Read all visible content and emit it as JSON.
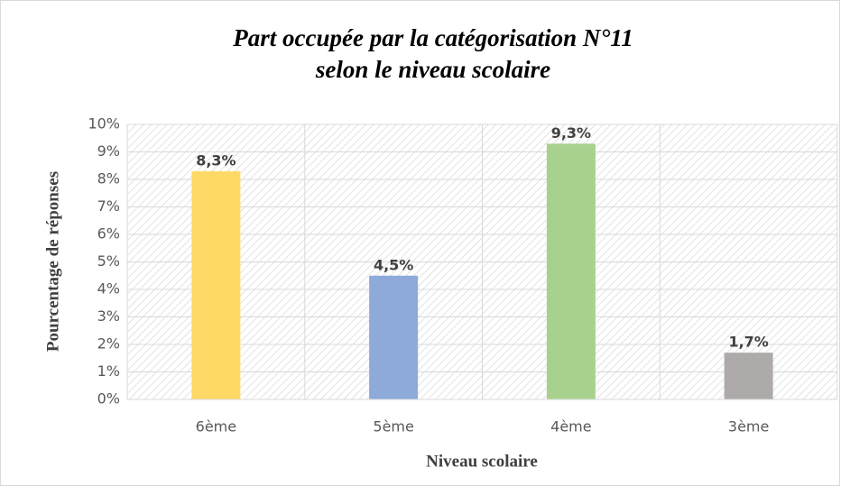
{
  "chart_data": {
    "type": "bar",
    "title": [
      "Part occupée par la catégorisation N°11",
      "selon le niveau scolaire"
    ],
    "x_label": "Niveau scolaire",
    "y_label": "Pourcentage de réponses",
    "categories": [
      "6ème",
      "5ème",
      "4ème",
      "3ème"
    ],
    "values": [
      8.3,
      4.5,
      9.3,
      1.7
    ],
    "value_labels": [
      "8,3%",
      "4,5%",
      "9,3%",
      "1,7%"
    ],
    "colors": [
      "#ffd966",
      "#8eaadb",
      "#a9d18e",
      "#aeaaaa"
    ],
    "ylim": [
      0,
      10
    ],
    "yticks": [
      {
        "value": 0,
        "label": "0%"
      },
      {
        "value": 1,
        "label": "1%"
      },
      {
        "value": 2,
        "label": "2%"
      },
      {
        "value": 3,
        "label": "3%"
      },
      {
        "value": 4,
        "label": "4%"
      },
      {
        "value": 5,
        "label": "5%"
      },
      {
        "value": 6,
        "label": "6%"
      },
      {
        "value": 7,
        "label": "7%"
      },
      {
        "value": 8,
        "label": "8%"
      },
      {
        "value": 9,
        "label": "9%"
      },
      {
        "value": 10,
        "label": "10%"
      }
    ],
    "grid": true
  }
}
